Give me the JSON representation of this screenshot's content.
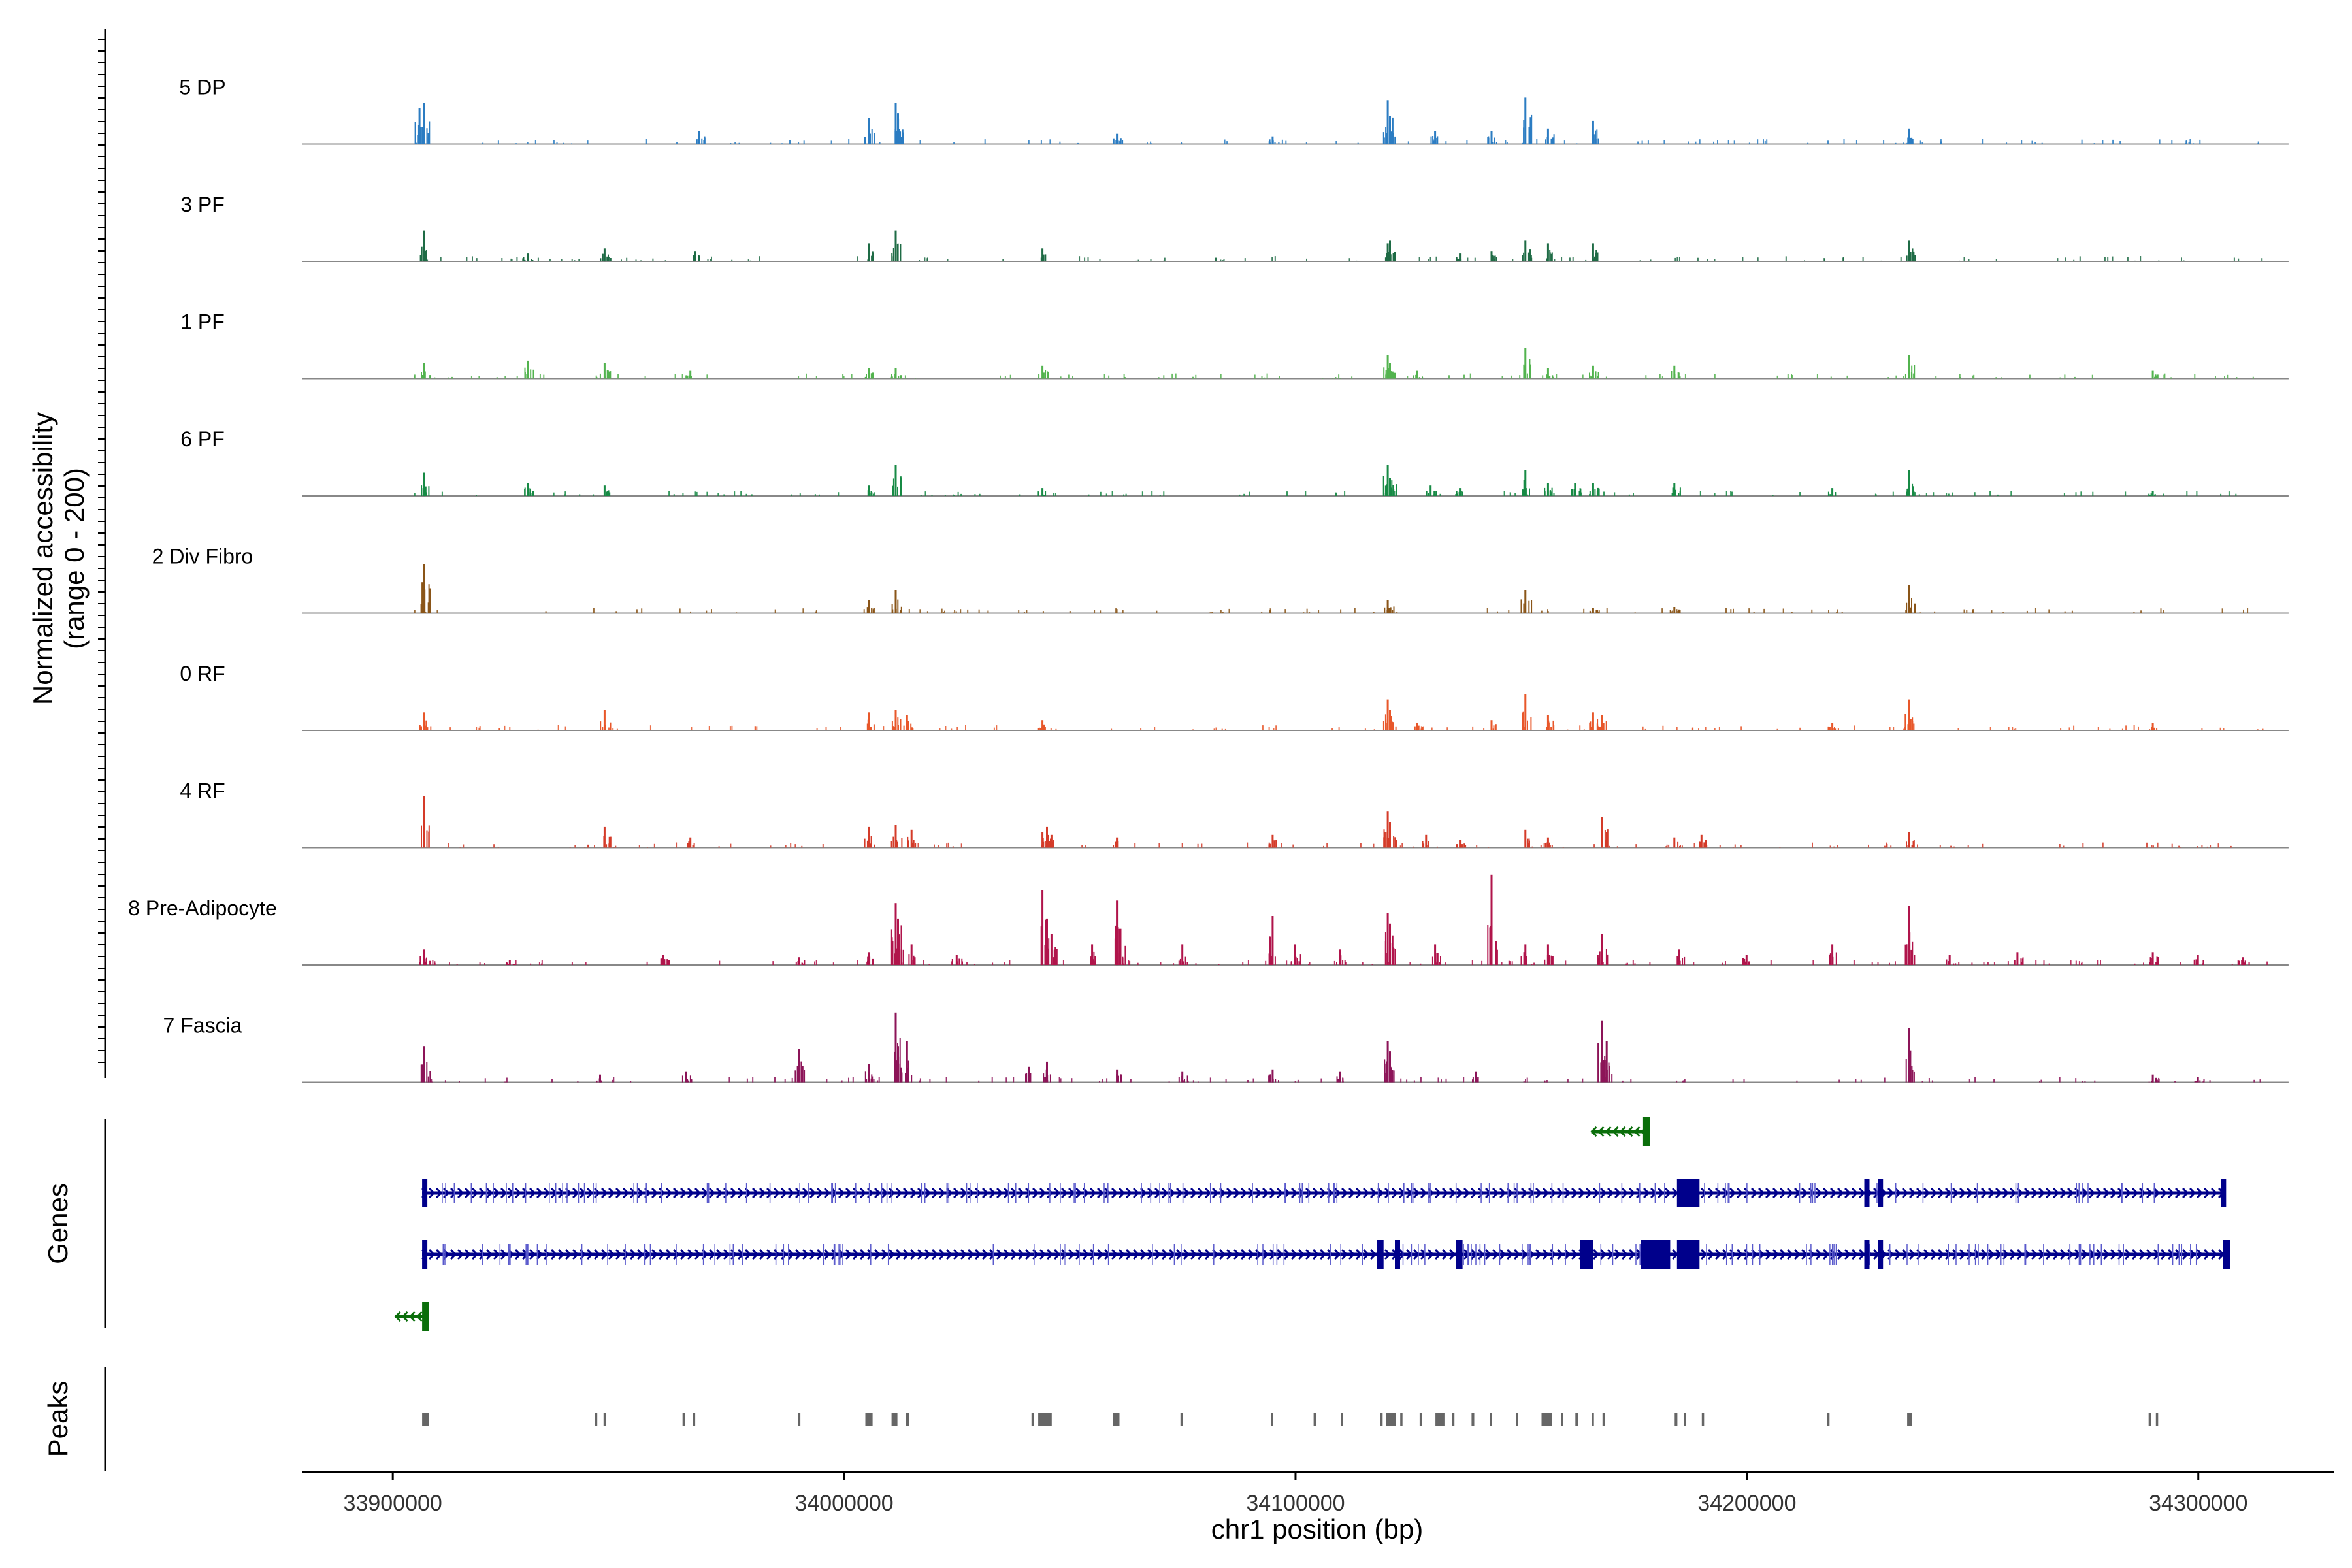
{
  "chart_data": {
    "type": "coverage",
    "title": "",
    "region": {
      "chromosome": "chr1",
      "start": 33880000,
      "end": 34330000
    },
    "xlabel": "chr1 position (bp)",
    "ylabel": "Normalized accessibility (range 0 - 200)",
    "ylim": [
      0,
      200
    ],
    "x_ticks": [
      {
        "value": 33900000,
        "label": "33900000"
      },
      {
        "value": 34000000,
        "label": "34000000"
      },
      {
        "value": 34100000,
        "label": "34100000"
      },
      {
        "value": 34200000,
        "label": "34200000"
      },
      {
        "value": 34300000,
        "label": "34300000"
      }
    ],
    "signal_extent": [
      33880000,
      34320000
    ],
    "series": [
      {
        "name": "5 DP",
        "color": "#2b7cc2",
        "peaks": [
          [
            33906000,
            70
          ],
          [
            33907000,
            80
          ],
          [
            33968000,
            25
          ],
          [
            34005500,
            50
          ],
          [
            34011500,
            80
          ],
          [
            34012000,
            60
          ],
          [
            34060500,
            20
          ],
          [
            34095000,
            15
          ],
          [
            34120500,
            85
          ],
          [
            34121000,
            55
          ],
          [
            34131000,
            25
          ],
          [
            34143500,
            25
          ],
          [
            34151000,
            90
          ],
          [
            34156000,
            30
          ],
          [
            34166000,
            45
          ],
          [
            34236000,
            30
          ]
        ]
      },
      {
        "name": "3 PF",
        "color": "#1e6b45",
        "peaks": [
          [
            33907000,
            60
          ],
          [
            33930000,
            15
          ],
          [
            33947000,
            25
          ],
          [
            33967000,
            20
          ],
          [
            34005500,
            35
          ],
          [
            34011500,
            60
          ],
          [
            34044000,
            25
          ],
          [
            34120500,
            35
          ],
          [
            34121000,
            40
          ],
          [
            34136500,
            15
          ],
          [
            34143500,
            20
          ],
          [
            34151000,
            40
          ],
          [
            34156000,
            35
          ],
          [
            34166000,
            35
          ],
          [
            34236000,
            40
          ]
        ]
      },
      {
        "name": "1 PF",
        "color": "#52b34e",
        "peaks": [
          [
            33907000,
            30
          ],
          [
            33930000,
            35
          ],
          [
            33947000,
            30
          ],
          [
            33966000,
            15
          ],
          [
            34005500,
            20
          ],
          [
            34011500,
            20
          ],
          [
            34044000,
            25
          ],
          [
            34120500,
            45
          ],
          [
            34121000,
            30
          ],
          [
            34127000,
            15
          ],
          [
            34151000,
            60
          ],
          [
            34156000,
            20
          ],
          [
            34166000,
            25
          ],
          [
            34184000,
            25
          ],
          [
            34236000,
            45
          ],
          [
            34290000,
            15
          ]
        ]
      },
      {
        "name": "6 PF",
        "color": "#178a45",
        "peaks": [
          [
            33907000,
            45
          ],
          [
            33930000,
            25
          ],
          [
            33947000,
            20
          ],
          [
            34005500,
            20
          ],
          [
            34011500,
            60
          ],
          [
            34044000,
            15
          ],
          [
            34120500,
            60
          ],
          [
            34121000,
            35
          ],
          [
            34130000,
            20
          ],
          [
            34136500,
            15
          ],
          [
            34151000,
            50
          ],
          [
            34156000,
            25
          ],
          [
            34162000,
            25
          ],
          [
            34166000,
            25
          ],
          [
            34184000,
            25
          ],
          [
            34219000,
            15
          ],
          [
            34236000,
            50
          ],
          [
            34290000,
            10
          ]
        ]
      },
      {
        "name": "2 Div Fibro",
        "color": "#8a5518",
        "peaks": [
          [
            33907000,
            95
          ],
          [
            34005500,
            25
          ],
          [
            34011500,
            45
          ],
          [
            34120500,
            25
          ],
          [
            34151000,
            45
          ],
          [
            34166000,
            10
          ],
          [
            34184000,
            12
          ],
          [
            34236000,
            55
          ]
        ]
      },
      {
        "name": "0 RF",
        "color": "#e8572a",
        "peaks": [
          [
            33907000,
            35
          ],
          [
            33947000,
            40
          ],
          [
            34005500,
            35
          ],
          [
            34011500,
            40
          ],
          [
            34014000,
            30
          ],
          [
            34044000,
            20
          ],
          [
            34120500,
            60
          ],
          [
            34121000,
            40
          ],
          [
            34127000,
            15
          ],
          [
            34143500,
            20
          ],
          [
            34151000,
            70
          ],
          [
            34156000,
            30
          ],
          [
            34166000,
            35
          ],
          [
            34168000,
            30
          ],
          [
            34219000,
            15
          ],
          [
            34236000,
            60
          ],
          [
            34290000,
            15
          ]
        ]
      },
      {
        "name": "4 RF",
        "color": "#d43b29",
        "peaks": [
          [
            33907000,
            100
          ],
          [
            33947000,
            40
          ],
          [
            33966000,
            20
          ],
          [
            34005500,
            40
          ],
          [
            34011500,
            45
          ],
          [
            34015000,
            35
          ],
          [
            34044000,
            30
          ],
          [
            34045000,
            40
          ],
          [
            34046000,
            25
          ],
          [
            34060500,
            20
          ],
          [
            34095000,
            25
          ],
          [
            34120500,
            70
          ],
          [
            34121000,
            50
          ],
          [
            34129000,
            25
          ],
          [
            34136500,
            15
          ],
          [
            34151000,
            35
          ],
          [
            34156000,
            20
          ],
          [
            34168000,
            60
          ],
          [
            34184000,
            20
          ],
          [
            34190000,
            25
          ],
          [
            34236000,
            30
          ]
        ]
      },
      {
        "name": "8 Pre-Adipocyte",
        "color": "#b0144b",
        "peaks": [
          [
            33907000,
            30
          ],
          [
            33926000,
            10
          ],
          [
            33960000,
            20
          ],
          [
            33990000,
            15
          ],
          [
            34005500,
            25
          ],
          [
            34011500,
            120
          ],
          [
            34012000,
            90
          ],
          [
            34015000,
            40
          ],
          [
            34025000,
            20
          ],
          [
            34044000,
            145
          ],
          [
            34045000,
            90
          ],
          [
            34046000,
            60
          ],
          [
            34055000,
            40
          ],
          [
            34060500,
            125
          ],
          [
            34061000,
            70
          ],
          [
            34075000,
            40
          ],
          [
            34095000,
            95
          ],
          [
            34100000,
            40
          ],
          [
            34110000,
            30
          ],
          [
            34120500,
            100
          ],
          [
            34121000,
            80
          ],
          [
            34131000,
            40
          ],
          [
            34143500,
            175
          ],
          [
            34151000,
            40
          ],
          [
            34156000,
            40
          ],
          [
            34168000,
            60
          ],
          [
            34185000,
            30
          ],
          [
            34200000,
            20
          ],
          [
            34219000,
            40
          ],
          [
            34236000,
            115
          ],
          [
            34245000,
            20
          ],
          [
            34260000,
            25
          ],
          [
            34290000,
            25
          ],
          [
            34300000,
            20
          ],
          [
            34310000,
            15
          ]
        ]
      },
      {
        "name": "7 Fascia",
        "color": "#8c1458",
        "peaks": [
          [
            33907000,
            70
          ],
          [
            33946000,
            15
          ],
          [
            33965000,
            20
          ],
          [
            33990000,
            65
          ],
          [
            34005500,
            35
          ],
          [
            34011500,
            135
          ],
          [
            34012000,
            70
          ],
          [
            34014000,
            80
          ],
          [
            34041000,
            30
          ],
          [
            34045000,
            40
          ],
          [
            34060500,
            25
          ],
          [
            34075000,
            20
          ],
          [
            34095000,
            25
          ],
          [
            34110000,
            20
          ],
          [
            34120500,
            80
          ],
          [
            34121000,
            60
          ],
          [
            34140000,
            20
          ],
          [
            34168000,
            120
          ],
          [
            34169000,
            80
          ],
          [
            34236000,
            105
          ],
          [
            34290000,
            15
          ],
          [
            34300000,
            10
          ]
        ]
      }
    ],
    "genes": [
      {
        "start": 34165500,
        "end": 34178500,
        "strand": "-",
        "color": "#0a6e0a",
        "exons": [
          [
            34177000,
            34178500
          ]
        ]
      },
      {
        "start": 33906500,
        "end": 34306000,
        "strand": "+",
        "color": "#00008b",
        "exons": [
          [
            33906500,
            33907500
          ],
          [
            34184500,
            34189500
          ],
          [
            34226000,
            34227000
          ],
          [
            34229000,
            34230000
          ],
          [
            34305000,
            34306000
          ]
        ]
      },
      {
        "start": 33906500,
        "end": 34307000,
        "strand": "+",
        "color": "#00008b",
        "exons": [
          [
            33906500,
            33907500
          ],
          [
            34118000,
            34119500
          ],
          [
            34122000,
            34123000
          ],
          [
            34135500,
            34137000
          ],
          [
            34163000,
            34166000
          ],
          [
            34176500,
            34183000
          ],
          [
            34184500,
            34189500
          ],
          [
            34226000,
            34227000
          ],
          [
            34229000,
            34230000
          ],
          [
            34305500,
            34307000
          ]
        ]
      },
      {
        "start": 33900500,
        "end": 33908000,
        "strand": "-",
        "color": "#0a6e0a",
        "exons": [
          [
            33906500,
            33908000
          ]
        ]
      }
    ],
    "peak_regions": [
      [
        33906500,
        33908000
      ],
      [
        33944800,
        33945300
      ],
      [
        33946700,
        33947300
      ],
      [
        33964200,
        33964700
      ],
      [
        33966500,
        33967000
      ],
      [
        33989800,
        33990300
      ],
      [
        34004700,
        34006300
      ],
      [
        34010500,
        34011800
      ],
      [
        34013700,
        34014400
      ],
      [
        34041500,
        34042000
      ],
      [
        34043000,
        34046000
      ],
      [
        34059500,
        34061000
      ],
      [
        34074500,
        34075000
      ],
      [
        34094500,
        34095000
      ],
      [
        34104000,
        34104500
      ],
      [
        34110000,
        34110500
      ],
      [
        34118800,
        34119300
      ],
      [
        34120000,
        34122200
      ],
      [
        34123200,
        34123700
      ],
      [
        34127500,
        34128000
      ],
      [
        34131000,
        34133000
      ],
      [
        34134700,
        34135200
      ],
      [
        34139000,
        34139600
      ],
      [
        34143000,
        34143500
      ],
      [
        34148800,
        34149300
      ],
      [
        34154500,
        34156800
      ],
      [
        34158800,
        34159300
      ],
      [
        34162000,
        34162600
      ],
      [
        34165600,
        34166100
      ],
      [
        34168000,
        34168500
      ],
      [
        34184000,
        34184600
      ],
      [
        34186000,
        34186500
      ],
      [
        34190000,
        34190500
      ],
      [
        34217800,
        34218300
      ],
      [
        34235500,
        34236500
      ],
      [
        34289000,
        34289600
      ],
      [
        34290600,
        34291100
      ]
    ],
    "panels": {
      "genes_label": "Genes",
      "peaks_label": "Peaks"
    }
  }
}
